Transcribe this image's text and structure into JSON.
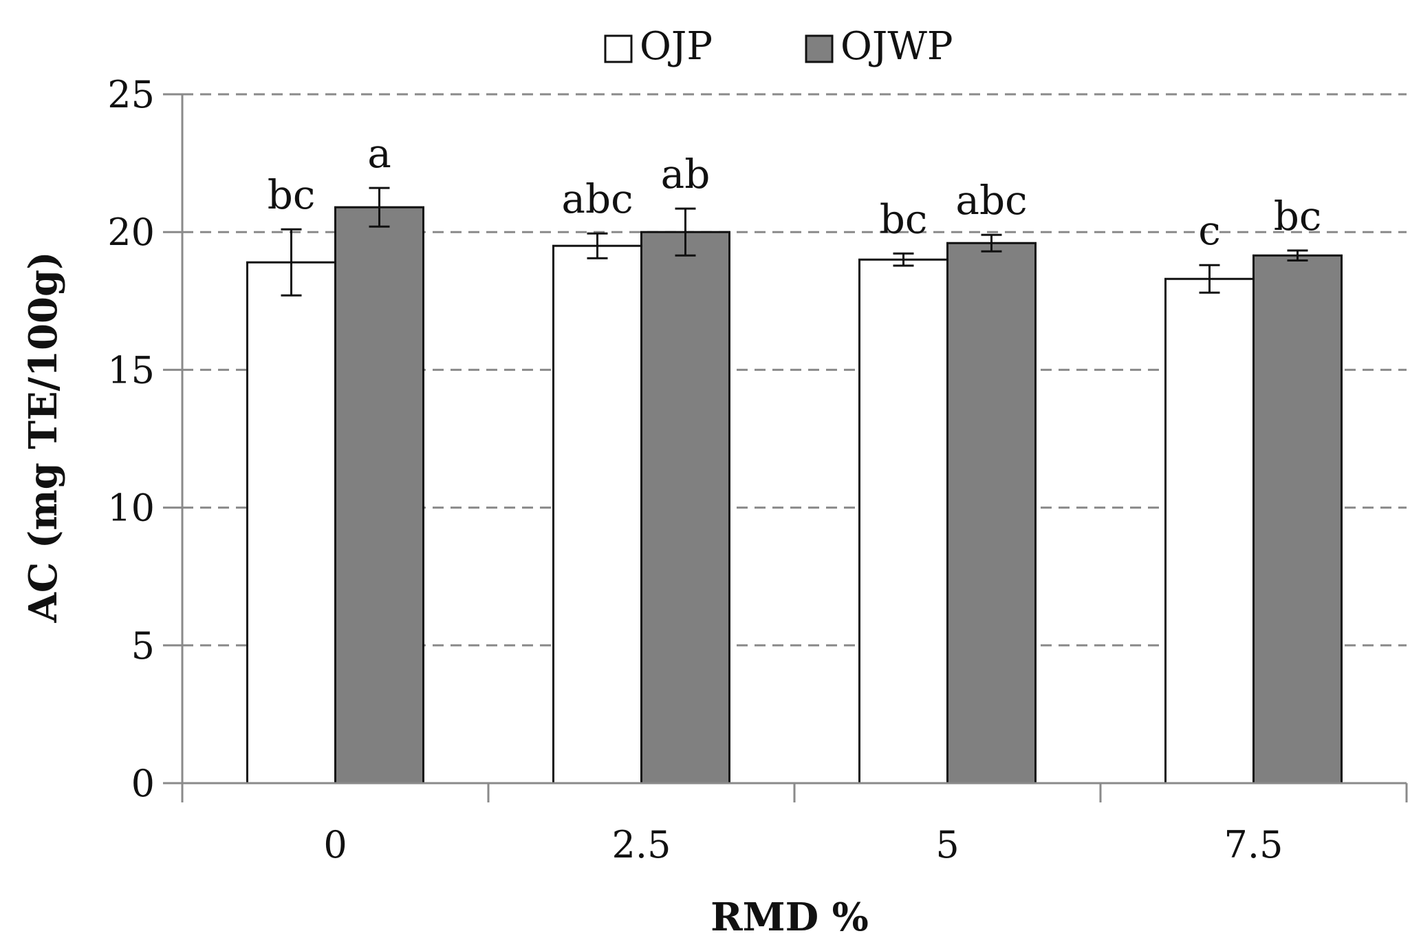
{
  "chart_data": {
    "type": "bar",
    "title": "",
    "xlabel": "RMD %",
    "ylabel": "AC (mg TE/100g)",
    "categories": [
      "0",
      "2.5",
      "5",
      "7.5"
    ],
    "ylim": [
      0,
      25
    ],
    "yticks": [
      "0",
      "5",
      "10",
      "15",
      "20",
      "25"
    ],
    "grid": true,
    "legend_position": "top-center",
    "series": [
      {
        "name": "OJP",
        "color": "#ffffff",
        "values": [
          18.9,
          19.5,
          19.0,
          18.3
        ],
        "errors": [
          1.2,
          0.45,
          0.22,
          0.5
        ],
        "labels": [
          "bc",
          "abc",
          "bc",
          "c"
        ]
      },
      {
        "name": "OJWP",
        "color": "#808080",
        "values": [
          20.9,
          20.0,
          19.6,
          19.15
        ],
        "errors": [
          0.7,
          0.85,
          0.3,
          0.18
        ],
        "labels": [
          "a",
          "ab",
          "abc",
          "bc"
        ]
      }
    ]
  }
}
